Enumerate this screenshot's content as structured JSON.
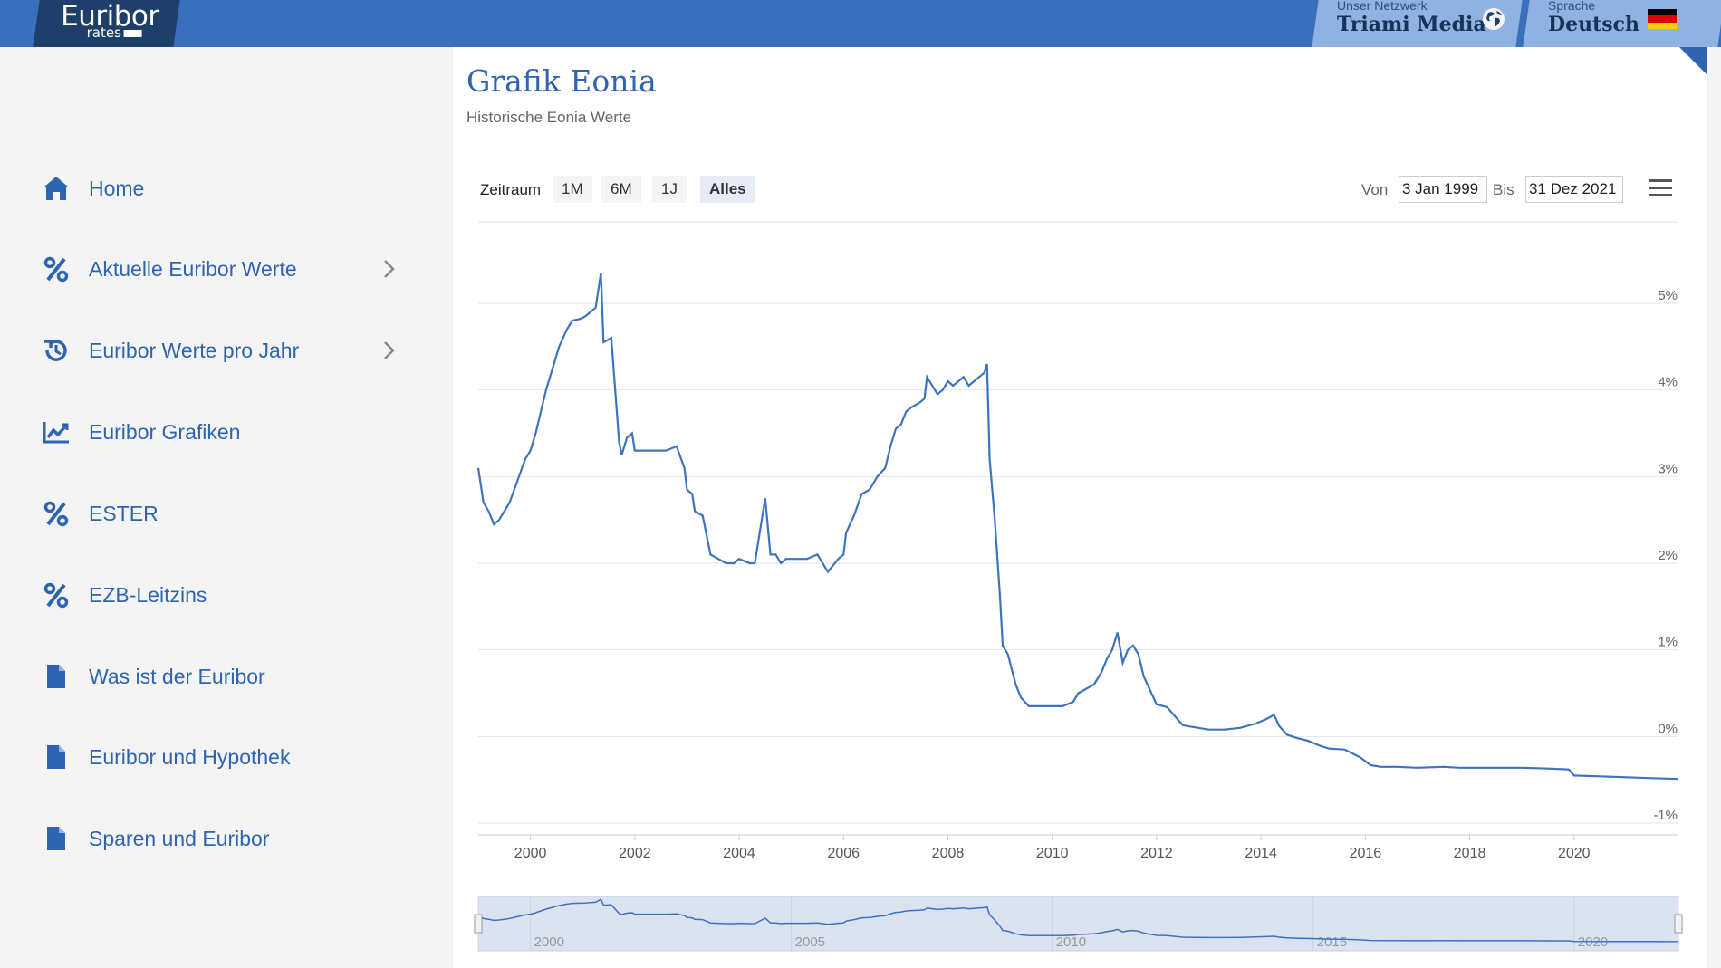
{
  "header": {
    "logo_brand": "Euribor",
    "logo_sub": "rates",
    "network_small": "Unser Netzwerk",
    "network_big": "Triami Media",
    "language_small": "Sprache",
    "language_big": "Deutsch",
    "icons": [
      "globe-icon",
      "german-flag-icon"
    ]
  },
  "sidebar": {
    "items": [
      {
        "label": "Home",
        "icon": "home-icon"
      },
      {
        "label": "Aktuelle Euribor Werte",
        "icon": "percent-icon",
        "submenu": true
      },
      {
        "label": "Euribor Werte pro Jahr",
        "icon": "history-icon",
        "submenu": true
      },
      {
        "label": "Euribor Grafiken",
        "icon": "chart-icon"
      },
      {
        "label": "ESTER",
        "icon": "percent-icon"
      },
      {
        "label": "EZB-Leitzins",
        "icon": "percent-icon"
      },
      {
        "label": "Was ist der Euribor",
        "icon": "document-icon"
      },
      {
        "label": "Euribor und Hypothek",
        "icon": "document-icon"
      },
      {
        "label": "Sparen und Euribor",
        "icon": "document-icon"
      }
    ]
  },
  "main": {
    "title": "Grafik Eonia",
    "subtitle": "Historische Eonia Werte",
    "range_label": "Zeitraum",
    "range_buttons": [
      "1M",
      "6M",
      "1J",
      "Alles"
    ],
    "active_range": "Alles",
    "from_label": "Von",
    "from_value": "3 Jan 1999",
    "to_label": "Bis",
    "to_value": "31 Dez 2021"
  },
  "colors": {
    "accent": "#2f64b1",
    "topbar": "#3a6fbd",
    "line": "#3e73c0"
  },
  "chart_data": {
    "type": "line",
    "title": "",
    "xlabel": "",
    "ylabel": "",
    "x_ticks": [
      "2000",
      "2002",
      "2004",
      "2006",
      "2008",
      "2010",
      "2012",
      "2014",
      "2016",
      "2018",
      "2020"
    ],
    "y_ticks": [
      "5%",
      "4%",
      "3%",
      "2%",
      "1%",
      "0%",
      "-1%"
    ],
    "navigator_ticks": [
      "2000",
      "2005",
      "2010",
      "2015",
      "2020"
    ],
    "xlim": [
      1999.0,
      2022.0
    ],
    "ylim": [
      -1,
      6
    ],
    "series": [
      {
        "x": [
          1999.0,
          1999.1,
          1999.2,
          1999.3,
          1999.4,
          1999.5,
          1999.6,
          1999.75,
          1999.9,
          2000.0,
          2000.1,
          2000.2,
          2000.3,
          2000.45,
          2000.55,
          2000.7,
          2000.8,
          2000.95,
          2001.05,
          2001.15,
          2001.25,
          2001.35,
          2001.4,
          2001.55,
          2001.7,
          2001.75,
          2001.85,
          2001.95,
          2002.0,
          2002.2,
          2002.4,
          2002.6,
          2002.8,
          2002.95,
          2003.0,
          2003.1,
          2003.15,
          2003.3,
          2003.45,
          2003.6,
          2003.75,
          2003.9,
          2004.0,
          2004.2,
          2004.3,
          2004.5,
          2004.6,
          2004.7,
          2004.8,
          2004.9,
          2005.1,
          2005.3,
          2005.5,
          2005.6,
          2005.7,
          2005.9,
          2006.0,
          2006.05,
          2006.2,
          2006.35,
          2006.5,
          2006.65,
          2006.8,
          2006.9,
          2007.0,
          2007.1,
          2007.2,
          2007.3,
          2007.45,
          2007.55,
          2007.6,
          2007.7,
          2007.8,
          2007.9,
          2008.0,
          2008.1,
          2008.2,
          2008.3,
          2008.4,
          2008.5,
          2008.6,
          2008.7,
          2008.75,
          2008.8,
          2008.9,
          2009.0,
          2009.05,
          2009.15,
          2009.3,
          2009.4,
          2009.55,
          2009.7,
          2009.85,
          2010.0,
          2010.2,
          2010.4,
          2010.5,
          2010.65,
          2010.8,
          2010.95,
          2011.05,
          2011.15,
          2011.25,
          2011.35,
          2011.45,
          2011.55,
          2011.65,
          2011.75,
          2011.9,
          2012.0,
          2012.2,
          2012.5,
          2012.8,
          2013.0,
          2013.3,
          2013.6,
          2013.9,
          2014.1,
          2014.25,
          2014.35,
          2014.5,
          2014.7,
          2014.9,
          2015.1,
          2015.3,
          2015.6,
          2015.9,
          2016.1,
          2016.3,
          2016.6,
          2017.0,
          2017.5,
          2017.8,
          2018.0,
          2018.5,
          2019.0,
          2019.5,
          2019.9,
          2020.0,
          2020.5,
          2021.0,
          2021.5,
          2022.0
        ],
        "y": [
          3.1,
          2.7,
          2.6,
          2.45,
          2.5,
          2.6,
          2.7,
          2.95,
          3.2,
          3.3,
          3.5,
          3.75,
          4.0,
          4.3,
          4.5,
          4.7,
          4.8,
          4.82,
          4.85,
          4.9,
          4.95,
          5.35,
          4.55,
          4.6,
          3.4,
          3.25,
          3.45,
          3.5,
          3.3,
          3.3,
          3.3,
          3.3,
          3.35,
          3.1,
          2.85,
          2.8,
          2.6,
          2.55,
          2.1,
          2.05,
          2.0,
          2.0,
          2.05,
          2.0,
          2.0,
          2.75,
          2.1,
          2.1,
          2.0,
          2.05,
          2.05,
          2.05,
          2.1,
          2.0,
          1.9,
          2.05,
          2.1,
          2.35,
          2.55,
          2.8,
          2.85,
          3.0,
          3.1,
          3.35,
          3.55,
          3.6,
          3.75,
          3.8,
          3.85,
          3.9,
          4.15,
          4.05,
          3.95,
          4.0,
          4.1,
          4.05,
          4.1,
          4.15,
          4.05,
          4.1,
          4.15,
          4.2,
          4.3,
          3.2,
          2.5,
          1.6,
          1.05,
          0.95,
          0.6,
          0.45,
          0.35,
          0.35,
          0.35,
          0.35,
          0.35,
          0.4,
          0.5,
          0.55,
          0.6,
          0.75,
          0.9,
          1.0,
          1.2,
          0.85,
          1.0,
          1.05,
          0.95,
          0.7,
          0.5,
          0.37,
          0.34,
          0.13,
          0.1,
          0.08,
          0.08,
          0.1,
          0.15,
          0.2,
          0.25,
          0.12,
          0.02,
          -0.02,
          -0.05,
          -0.1,
          -0.14,
          -0.15,
          -0.24,
          -0.33,
          -0.35,
          -0.35,
          -0.36,
          -0.35,
          -0.36,
          -0.36,
          -0.36,
          -0.36,
          -0.37,
          -0.38,
          -0.45,
          -0.46,
          -0.47,
          -0.48,
          -0.49
        ]
      }
    ],
    "grid": true,
    "y_axis_position": "right"
  }
}
